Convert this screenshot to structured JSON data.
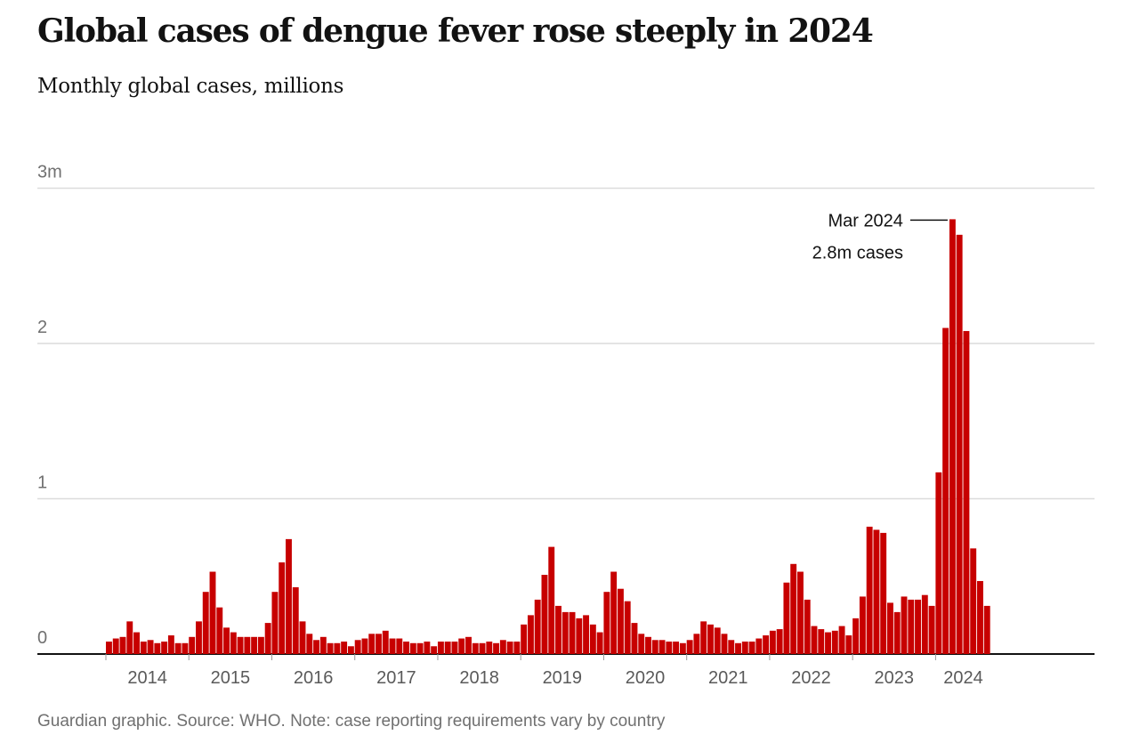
{
  "header": {
    "title": "Global cases of dengue fever rose steeply in 2024",
    "subtitle": "Monthly global cases, millions"
  },
  "footer": {
    "note": "Guardian graphic. Source: WHO. Note: case reporting requirements vary by country"
  },
  "chart_data": {
    "type": "bar",
    "ylim": [
      0,
      3
    ],
    "yticks": [
      {
        "value": 0,
        "label": "0"
      },
      {
        "value": 1,
        "label": "1"
      },
      {
        "value": 2,
        "label": "2"
      },
      {
        "value": 3,
        "label": "3m"
      }
    ],
    "grid": true,
    "bar_color": "#c70000",
    "x_start": "2014-01",
    "xtick_labels": [
      "2014",
      "2015",
      "2016",
      "2017",
      "2018",
      "2019",
      "2020",
      "2021",
      "2022",
      "2023",
      "2024"
    ],
    "series": [
      {
        "values": [
          0.08,
          0.1,
          0.11,
          0.21,
          0.14,
          0.08,
          0.09,
          0.07,
          0.08,
          0.12,
          0.07,
          0.07,
          0.11,
          0.21,
          0.4,
          0.53,
          0.3,
          0.17,
          0.14,
          0.11,
          0.11,
          0.11,
          0.11,
          0.2,
          0.4,
          0.59,
          0.74,
          0.43,
          0.21,
          0.13,
          0.09,
          0.11,
          0.07,
          0.07,
          0.08,
          0.05,
          0.09,
          0.1,
          0.13,
          0.13,
          0.15,
          0.1,
          0.1,
          0.08,
          0.07,
          0.07,
          0.08,
          0.05,
          0.08,
          0.08,
          0.08,
          0.1,
          0.11,
          0.07,
          0.07,
          0.08,
          0.07,
          0.09,
          0.08,
          0.08,
          0.19,
          0.25,
          0.35,
          0.51,
          0.69,
          0.31,
          0.27,
          0.27,
          0.23,
          0.25,
          0.19,
          0.14,
          0.4,
          0.53,
          0.42,
          0.34,
          0.2,
          0.13,
          0.11,
          0.09,
          0.09,
          0.08,
          0.08,
          0.07,
          0.09,
          0.13,
          0.21,
          0.19,
          0.17,
          0.13,
          0.09,
          0.07,
          0.08,
          0.08,
          0.1,
          0.12,
          0.15,
          0.16,
          0.46,
          0.58,
          0.53,
          0.35,
          0.18,
          0.16,
          0.14,
          0.15,
          0.18,
          0.12,
          0.23,
          0.37,
          0.82,
          0.8,
          0.78,
          0.33,
          0.27,
          0.37,
          0.35,
          0.35,
          0.38,
          0.31,
          1.17,
          2.1,
          2.8,
          2.7,
          2.08,
          0.68,
          0.47,
          0.31
        ]
      }
    ],
    "annotations": [
      {
        "x": "2024-03",
        "y": 2.8,
        "line1": "Mar 2024",
        "line2": "2.8m cases"
      }
    ]
  }
}
